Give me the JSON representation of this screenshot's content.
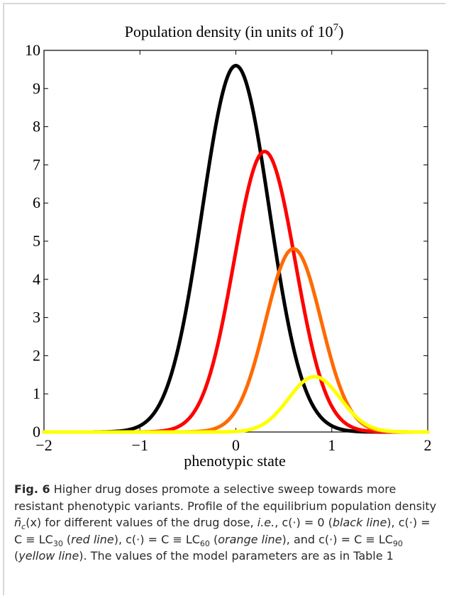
{
  "chart_data": {
    "type": "line",
    "title_main": "Population density (in units of 10",
    "title_exp": "7",
    "title_close": ")",
    "xlabel": "phenotypic state",
    "ylabel": "",
    "xlim": [
      -2,
      2
    ],
    "ylim": [
      0,
      10
    ],
    "xticks": [
      -2,
      -1,
      0,
      1,
      2
    ],
    "xtick_labels": [
      "−2",
      "−1",
      "0",
      "1",
      "2"
    ],
    "yticks": [
      0,
      1,
      2,
      3,
      4,
      5,
      6,
      7,
      8,
      9,
      10
    ],
    "ytick_labels": [
      "0",
      "1",
      "2",
      "3",
      "4",
      "5",
      "6",
      "7",
      "8",
      "9",
      "10"
    ],
    "grid": false,
    "series": [
      {
        "key": "black",
        "color": "#000000",
        "peak_x": 0.0,
        "peak_y": 9.6,
        "sigma": 0.35
      },
      {
        "key": "red",
        "color": "#ff0000",
        "peak_x": 0.3,
        "peak_y": 7.35,
        "sigma": 0.32
      },
      {
        "key": "orange",
        "color": "#ff6a00",
        "peak_x": 0.6,
        "peak_y": 4.8,
        "sigma": 0.29
      },
      {
        "key": "yellow",
        "color": "#ffff00",
        "peak_x": 0.82,
        "peak_y": 1.45,
        "sigma": 0.27
      }
    ]
  },
  "caption": {
    "fig_label": "Fig. 6",
    "lead": " Higher drug doses promote a selective sweep towards more resistant phenotypic variants. Profile of the equilibrium population density ",
    "nbar": "n̄",
    "sub_c": "c",
    "after_n": "(x) for different values of the drug dose, ",
    "ie": "i.e.",
    "part1": ", c(·) = 0 (",
    "black_line": "black line",
    "part2": "), c(·) = C ≡ LC",
    "sub30": "30",
    "part3": " (",
    "red_line": "red line",
    "part4": "), c(·) = C ≡ LC",
    "sub60": "60",
    "part5": " (",
    "orange_line": "orange line",
    "part6": "), and c(·) = C ≡ LC",
    "sub90": "90",
    "part7": " (",
    "yellow_line": "yellow line",
    "part8": "). The values of the model parameters are as in Table 1"
  }
}
